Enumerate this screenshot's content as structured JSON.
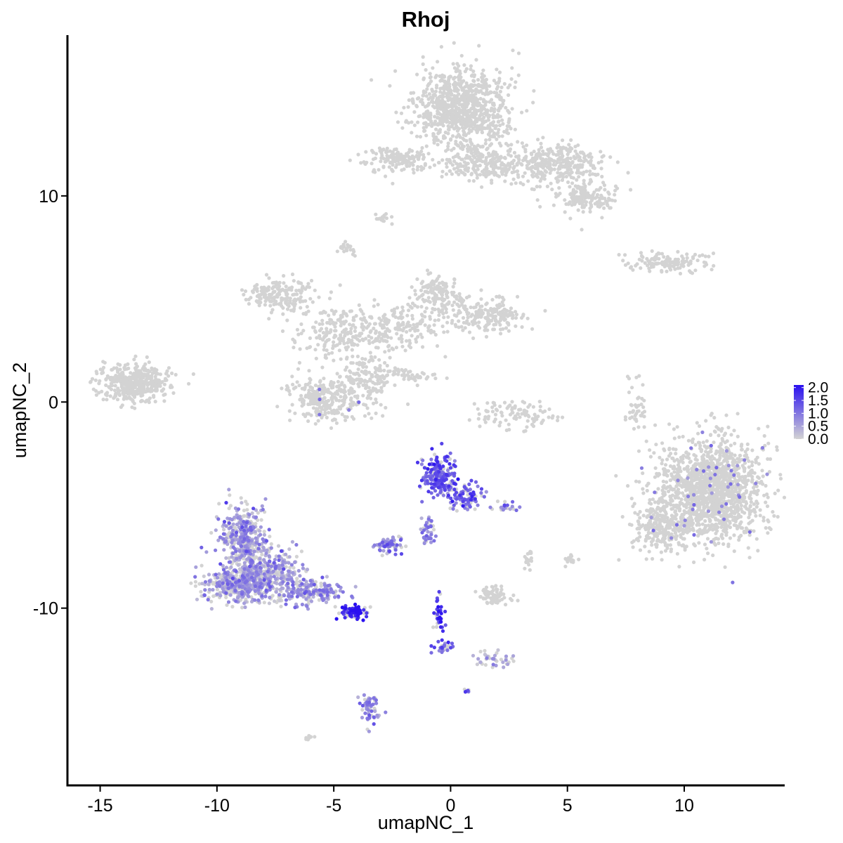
{
  "chart_data": {
    "type": "scatter",
    "title": "Rhoj",
    "xlabel": "umapNC_1",
    "ylabel": "umapNC_2",
    "xlim": [
      -16.4,
      14.3
    ],
    "ylim": [
      -18.6,
      17.8
    ],
    "x_ticks": [
      -15,
      -10,
      -5,
      0,
      5,
      10
    ],
    "x_tick_labels": [
      "-15",
      "-10",
      "-5",
      "0",
      "5",
      "10"
    ],
    "y_ticks": [
      -10,
      0,
      10
    ],
    "y_tick_labels": [
      "-10",
      "0",
      "10"
    ],
    "grid": false,
    "color_scale": {
      "low_color": "#d3d3d3",
      "high_color": "#2a10f0",
      "min": 0.0,
      "max": 2.1,
      "legend_ticks": [
        2.0,
        1.5,
        1.0,
        0.5,
        0.0
      ],
      "legend_tick_labels": [
        "2.0",
        "1.5",
        "1.0",
        "0.5",
        "0.0"
      ],
      "legend_placement": "right"
    },
    "clusters": [
      {
        "cx": 0.5,
        "cy": 14.2,
        "sx": 1.3,
        "sy": 1.3,
        "n": 900,
        "expr": 0
      },
      {
        "cx": 1.6,
        "cy": 11.6,
        "sx": 1.3,
        "sy": 0.6,
        "n": 250,
        "expr": 0
      },
      {
        "cx": 4.6,
        "cy": 11.6,
        "sx": 1.2,
        "sy": 0.7,
        "n": 300,
        "expr": 0
      },
      {
        "cx": 5.8,
        "cy": 9.9,
        "sx": 0.9,
        "sy": 0.5,
        "n": 150,
        "expr": 0
      },
      {
        "cx": -2.2,
        "cy": 11.8,
        "sx": 1.0,
        "sy": 0.4,
        "n": 160,
        "expr": 0
      },
      {
        "cx": -2.8,
        "cy": 8.9,
        "sx": 0.2,
        "sy": 0.15,
        "n": 20,
        "expr": 0
      },
      {
        "cx": -4.4,
        "cy": 7.4,
        "sx": 0.2,
        "sy": 0.2,
        "n": 20,
        "expr": 0
      },
      {
        "cx": 9.2,
        "cy": 6.8,
        "sx": 1.1,
        "sy": 0.3,
        "n": 130,
        "expr": 0
      },
      {
        "cx": -13.5,
        "cy": 0.9,
        "sx": 1.0,
        "sy": 0.6,
        "n": 420,
        "expr": 0
      },
      {
        "cx": -7.3,
        "cy": 5.2,
        "sx": 1.0,
        "sy": 0.5,
        "n": 180,
        "expr": 0
      },
      {
        "cx": -5.0,
        "cy": 3.4,
        "sx": 1.2,
        "sy": 0.8,
        "n": 170,
        "expr": 0
      },
      {
        "cx": -3.6,
        "cy": 1.3,
        "sx": 0.7,
        "sy": 1.0,
        "n": 160,
        "expr": 0
      },
      {
        "cx": -5.5,
        "cy": 0.2,
        "sx": 1.1,
        "sy": 0.7,
        "n": 280,
        "expr": 0.02
      },
      {
        "cx": -2.4,
        "cy": 3.6,
        "sx": 1.4,
        "sy": 0.8,
        "n": 170,
        "expr": 0
      },
      {
        "cx": -0.6,
        "cy": 5.1,
        "sx": 0.7,
        "sy": 0.8,
        "n": 150,
        "expr": 0
      },
      {
        "cx": 1.5,
        "cy": 4.2,
        "sx": 1.1,
        "sy": 0.6,
        "n": 200,
        "expr": 0
      },
      {
        "cx": -2.1,
        "cy": 1.3,
        "sx": 1.1,
        "sy": 0.25,
        "n": 50,
        "expr": 0
      },
      {
        "cx": 2.8,
        "cy": -0.6,
        "sx": 1.1,
        "sy": 0.5,
        "n": 100,
        "expr": 0.02
      },
      {
        "cx": 8.0,
        "cy": -0.2,
        "sx": 0.3,
        "sy": 0.8,
        "n": 40,
        "expr": 0
      },
      {
        "cx": 11.1,
        "cy": -4.2,
        "sx": 1.5,
        "sy": 1.7,
        "n": 1500,
        "expr": 0.01
      },
      {
        "cx": 9.0,
        "cy": -6.1,
        "sx": 0.9,
        "sy": 0.8,
        "n": 250,
        "expr": 0.01
      },
      {
        "cx": -8.9,
        "cy": -6.7,
        "sx": 0.7,
        "sy": 1.1,
        "n": 380,
        "expr": 0.6
      },
      {
        "cx": -9.2,
        "cy": -8.9,
        "sx": 0.9,
        "sy": 0.5,
        "n": 380,
        "expr": 0.55
      },
      {
        "cx": -7.8,
        "cy": -8.3,
        "sx": 0.8,
        "sy": 0.8,
        "n": 330,
        "expr": 0.5
      },
      {
        "cx": -6.1,
        "cy": -9.2,
        "sx": 1.0,
        "sy": 0.4,
        "n": 220,
        "expr": 0.7
      },
      {
        "cx": -4.2,
        "cy": -10.2,
        "sx": 0.35,
        "sy": 0.2,
        "n": 90,
        "expr": 1.9
      },
      {
        "cx": -0.5,
        "cy": -3.6,
        "sx": 0.5,
        "sy": 0.6,
        "n": 220,
        "expr": 1.3
      },
      {
        "cx": 0.6,
        "cy": -4.6,
        "sx": 0.5,
        "sy": 0.4,
        "n": 90,
        "expr": 1.3
      },
      {
        "cx": -1.0,
        "cy": -6.2,
        "sx": 0.25,
        "sy": 0.6,
        "n": 40,
        "expr": 0.9
      },
      {
        "cx": 2.4,
        "cy": -5.1,
        "sx": 0.4,
        "sy": 0.2,
        "n": 20,
        "expr": 1.1
      },
      {
        "cx": -2.6,
        "cy": -6.9,
        "sx": 0.4,
        "sy": 0.3,
        "n": 70,
        "expr": 0.9
      },
      {
        "cx": -0.5,
        "cy": -10.4,
        "sx": 0.15,
        "sy": 0.6,
        "n": 40,
        "expr": 1.7
      },
      {
        "cx": -0.3,
        "cy": -11.9,
        "sx": 0.25,
        "sy": 0.2,
        "n": 30,
        "expr": 1.1
      },
      {
        "cx": 1.9,
        "cy": -9.4,
        "sx": 0.5,
        "sy": 0.3,
        "n": 70,
        "expr": 0
      },
      {
        "cx": 3.3,
        "cy": -7.6,
        "sx": 0.15,
        "sy": 0.3,
        "n": 20,
        "expr": 0
      },
      {
        "cx": 5.1,
        "cy": -7.6,
        "sx": 0.2,
        "sy": 0.2,
        "n": 20,
        "expr": 0
      },
      {
        "cx": 1.8,
        "cy": -12.5,
        "sx": 0.6,
        "sy": 0.3,
        "n": 40,
        "expr": 0.4
      },
      {
        "cx": -3.5,
        "cy": -14.8,
        "sx": 0.25,
        "sy": 0.5,
        "n": 60,
        "expr": 0.8
      },
      {
        "cx": 0.7,
        "cy": -14.0,
        "sx": 0.08,
        "sy": 0.08,
        "n": 6,
        "expr": 1.5
      },
      {
        "cx": -6.0,
        "cy": -16.3,
        "sx": 0.12,
        "sy": 0.08,
        "n": 8,
        "expr": 0
      }
    ]
  }
}
